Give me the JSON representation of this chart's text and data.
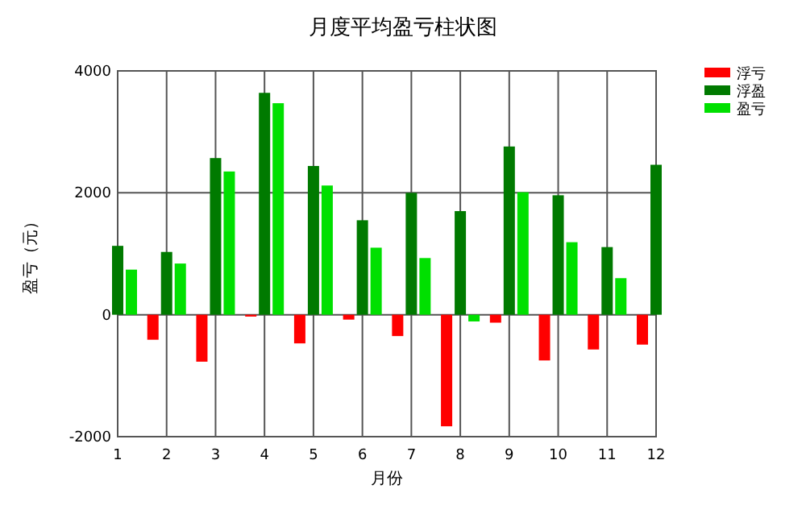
{
  "chart_data": {
    "type": "bar",
    "title": "月度平均盈亏柱状图",
    "xlabel": "月份",
    "ylabel": "盈亏（元）",
    "x": [
      1,
      2,
      3,
      4,
      5,
      6,
      7,
      8,
      9,
      10,
      11,
      12
    ],
    "series": [
      {
        "name": "浮亏",
        "color": "#ff0000",
        "values": [
          null,
          -410,
          -770,
          -30,
          -470,
          -80,
          -350,
          -1830,
          -130,
          -750,
          -570,
          -490
        ]
      },
      {
        "name": "浮盈",
        "color": "#007a00",
        "values": [
          1130,
          1030,
          2570,
          3640,
          2440,
          1550,
          2000,
          1700,
          2760,
          1960,
          1110,
          2460
        ]
      },
      {
        "name": "盈亏",
        "color": "#00e000",
        "values": [
          740,
          840,
          2350,
          3470,
          2120,
          1100,
          930,
          -110,
          2010,
          1190,
          600,
          null
        ]
      }
    ],
    "xlim": [
      1,
      12
    ],
    "ylim": [
      -2000,
      4000
    ],
    "xticks": [
      1,
      2,
      3,
      4,
      5,
      6,
      7,
      8,
      9,
      10,
      11,
      12
    ],
    "yticks": [
      -2000,
      0,
      2000,
      4000
    ],
    "grid": true,
    "legend": "top right"
  }
}
